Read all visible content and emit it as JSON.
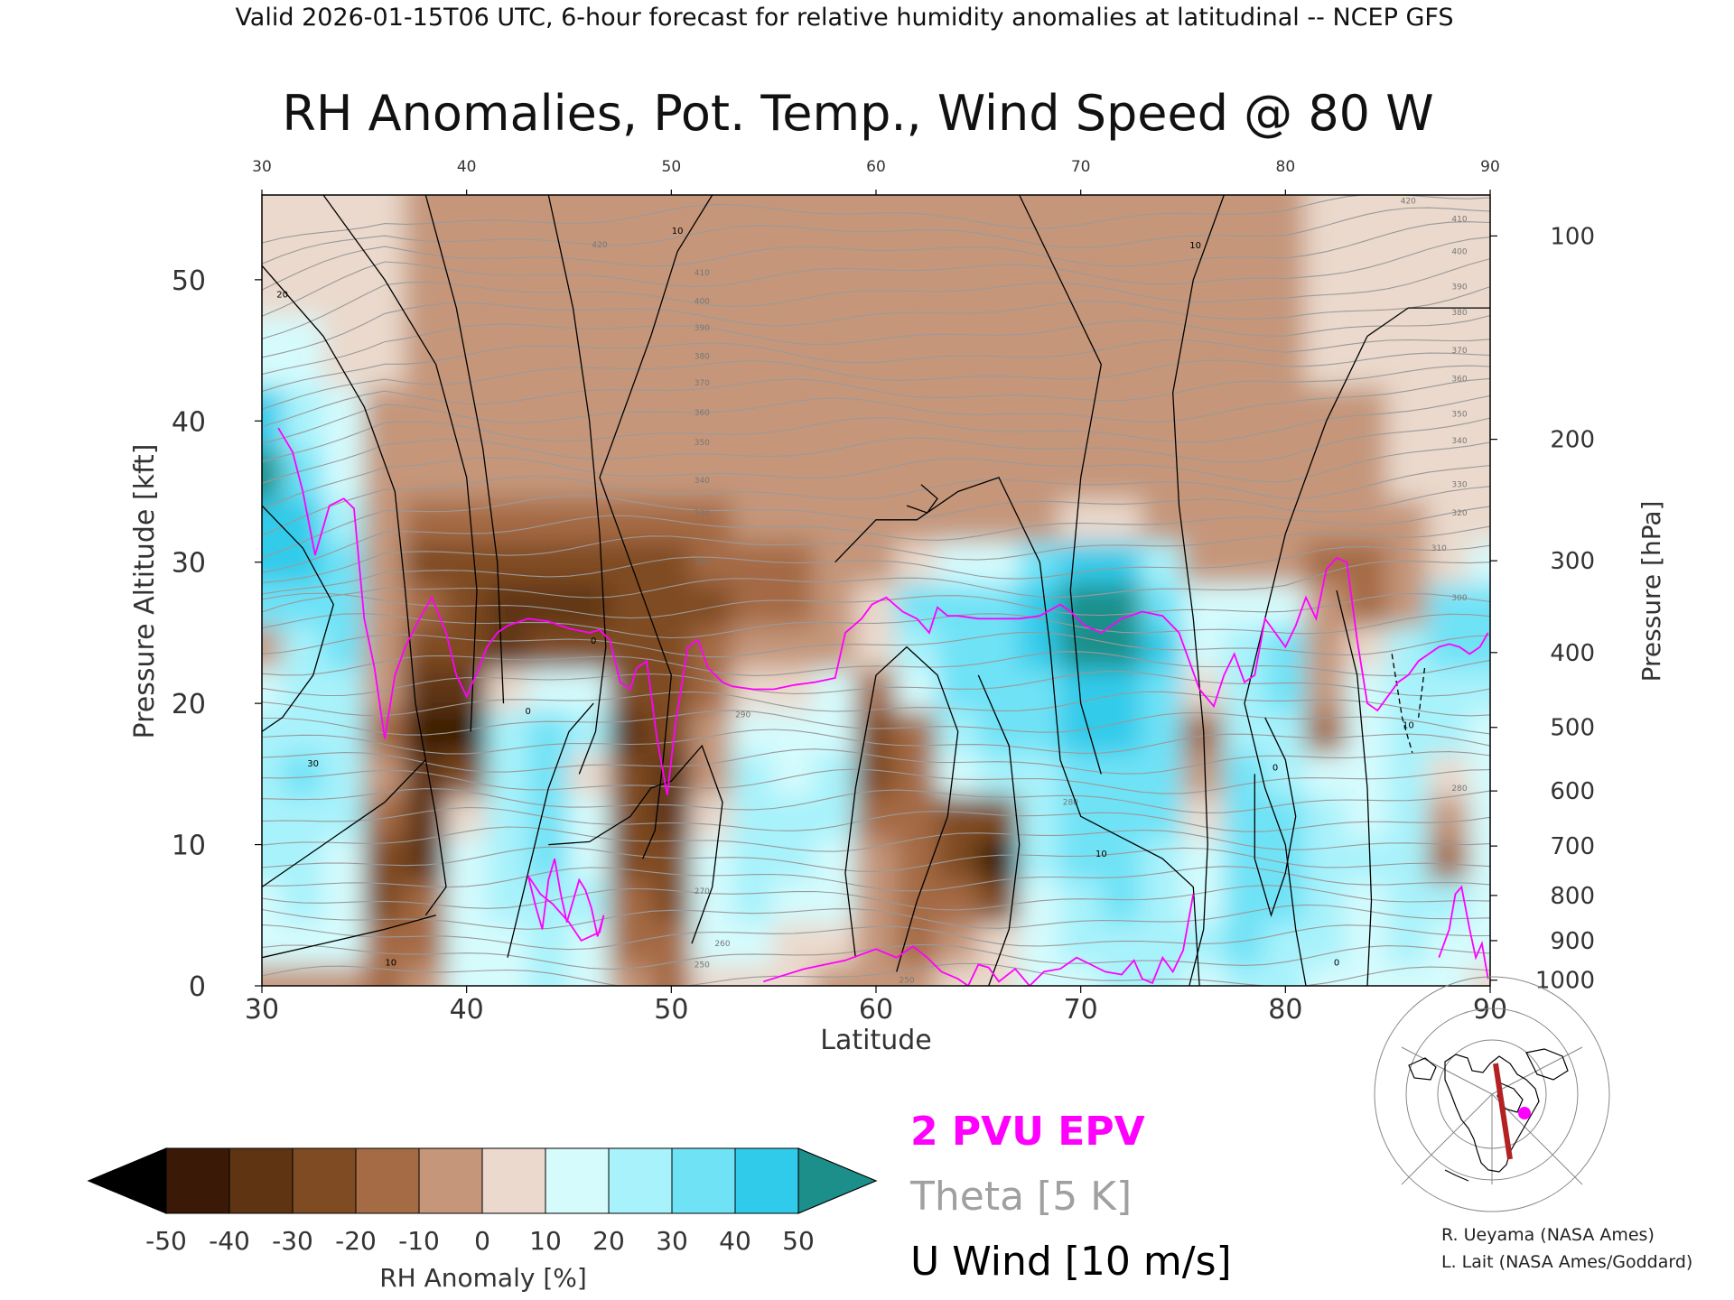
{
  "header": "Valid 2026-01-15T06 UTC, 6-hour forecast for relative humidity anomalies at latitudinal -- NCEP GFS",
  "chart_data": {
    "type": "heatmap",
    "title": "RH Anomalies, Pot. Temp., Wind Speed @ 80 W",
    "xlabel": "Latitude",
    "ylabel": "Pressure Altitude [kft]",
    "ylabel_right": "Pressure [hPa]",
    "xlim": [
      30,
      90
    ],
    "ylim": [
      0,
      56
    ],
    "x_ticks": [
      30,
      40,
      50,
      60,
      70,
      80,
      90
    ],
    "x_tick_labels": [
      "30",
      "40",
      "50",
      "60",
      "70",
      "80",
      "90"
    ],
    "y_ticks": [
      0,
      10,
      20,
      30,
      40,
      50
    ],
    "y_tick_labels": [
      "0",
      "10",
      "20",
      "30",
      "40",
      "50"
    ],
    "pressure_ticks": [
      {
        "label": "100",
        "kft": 53.1
      },
      {
        "label": "200",
        "kft": 38.7
      },
      {
        "label": "300",
        "kft": 30.1
      },
      {
        "label": "400",
        "kft": 23.6
      },
      {
        "label": "500",
        "kft": 18.3
      },
      {
        "label": "600",
        "kft": 13.8
      },
      {
        "label": "700",
        "kft": 9.9
      },
      {
        "label": "800",
        "kft": 6.4
      },
      {
        "label": "900",
        "kft": 3.2
      },
      {
        "label": "1000",
        "kft": 0.4
      }
    ],
    "rh_anomaly_field": {
      "x": [
        30,
        32,
        34,
        36,
        38,
        40,
        42,
        44,
        46,
        48,
        50,
        52,
        54,
        56,
        58,
        60,
        62,
        64,
        66,
        68,
        70,
        72,
        74,
        76,
        78,
        80,
        82,
        84,
        86,
        88,
        90
      ],
      "y": [
        0,
        3,
        6,
        9,
        12,
        15,
        18,
        21,
        24,
        27,
        30,
        33,
        36,
        40,
        45,
        50,
        56
      ],
      "values": [
        [
          -5,
          -5,
          -10,
          -20,
          -5,
          10,
          15,
          20,
          10,
          -10,
          -15,
          5,
          5,
          0,
          -5,
          -5,
          -10,
          0,
          5,
          10,
          15,
          20,
          20,
          15,
          25,
          20,
          15,
          10,
          15,
          10,
          5
        ],
        [
          10,
          15,
          10,
          -15,
          -15,
          15,
          15,
          20,
          15,
          -15,
          -20,
          10,
          10,
          5,
          0,
          -5,
          -15,
          -5,
          0,
          15,
          20,
          25,
          25,
          20,
          30,
          25,
          20,
          10,
          20,
          15,
          10
        ],
        [
          15,
          20,
          10,
          -25,
          -20,
          15,
          25,
          25,
          20,
          -20,
          -25,
          15,
          20,
          15,
          10,
          -10,
          -20,
          -15,
          -25,
          15,
          25,
          30,
          25,
          15,
          30,
          30,
          25,
          15,
          25,
          20,
          10
        ],
        [
          20,
          25,
          15,
          -25,
          -35,
          10,
          25,
          30,
          15,
          -25,
          -30,
          10,
          25,
          20,
          15,
          -10,
          -15,
          -30,
          -45,
          20,
          30,
          30,
          25,
          10,
          35,
          30,
          25,
          20,
          25,
          -15,
          15
        ],
        [
          20,
          25,
          20,
          -15,
          -40,
          5,
          25,
          30,
          10,
          -30,
          -35,
          0,
          20,
          20,
          20,
          -20,
          -15,
          -25,
          -30,
          20,
          30,
          35,
          30,
          5,
          35,
          30,
          20,
          15,
          25,
          -10,
          10
        ],
        [
          25,
          30,
          25,
          -10,
          -35,
          -25,
          25,
          35,
          5,
          -30,
          -35,
          -5,
          20,
          15,
          20,
          -25,
          -20,
          10,
          25,
          25,
          35,
          35,
          30,
          -10,
          30,
          25,
          15,
          10,
          20,
          5,
          10
        ],
        [
          20,
          25,
          20,
          -15,
          -45,
          -50,
          20,
          30,
          20,
          -35,
          -30,
          -10,
          10,
          10,
          15,
          -25,
          -15,
          20,
          35,
          30,
          40,
          40,
          35,
          -20,
          25,
          20,
          -15,
          10,
          25,
          20,
          10
        ],
        [
          15,
          25,
          25,
          -5,
          -40,
          -40,
          0,
          15,
          10,
          -30,
          -30,
          -15,
          0,
          0,
          10,
          -15,
          15,
          30,
          35,
          35,
          45,
          45,
          35,
          5,
          25,
          30,
          -10,
          15,
          25,
          25,
          20
        ],
        [
          -10,
          20,
          35,
          -5,
          -25,
          -30,
          -35,
          -30,
          -30,
          -25,
          -25,
          -15,
          -10,
          -10,
          -5,
          5,
          25,
          35,
          35,
          40,
          50,
          50,
          40,
          15,
          25,
          35,
          -10,
          5,
          25,
          30,
          30
        ],
        [
          30,
          35,
          30,
          -5,
          -20,
          -30,
          -35,
          -35,
          -35,
          -30,
          -30,
          -25,
          -20,
          -15,
          -10,
          5,
          30,
          30,
          30,
          45,
          55,
          50,
          35,
          15,
          15,
          15,
          -10,
          -15,
          -5,
          30,
          30
        ],
        [
          40,
          40,
          30,
          -10,
          -25,
          -30,
          -30,
          -30,
          -25,
          -25,
          -25,
          -20,
          -15,
          -15,
          -10,
          -5,
          5,
          15,
          10,
          30,
          40,
          40,
          20,
          -5,
          -10,
          -10,
          -15,
          -20,
          -10,
          5,
          10
        ],
        [
          45,
          40,
          20,
          -5,
          -15,
          -15,
          -15,
          -15,
          -15,
          -15,
          -15,
          -15,
          -10,
          -10,
          -10,
          -10,
          -5,
          -5,
          -5,
          -5,
          0,
          0,
          -5,
          -10,
          -10,
          -10,
          -10,
          -10,
          -5,
          0,
          5
        ],
        [
          50,
          35,
          15,
          -5,
          -10,
          -10,
          -10,
          -10,
          -10,
          -10,
          -10,
          -10,
          -10,
          -10,
          -10,
          -10,
          -10,
          -10,
          -10,
          -10,
          -10,
          -10,
          -10,
          -10,
          -10,
          -10,
          -10,
          -5,
          0,
          5,
          5
        ],
        [
          40,
          25,
          10,
          -5,
          -10,
          -10,
          -10,
          -10,
          -10,
          -10,
          -10,
          -10,
          -10,
          -10,
          -10,
          -10,
          -10,
          -10,
          -10,
          -10,
          -10,
          -10,
          -10,
          -10,
          -10,
          -10,
          -5,
          -5,
          0,
          5,
          5
        ],
        [
          15,
          10,
          5,
          0,
          -5,
          -5,
          -5,
          -5,
          -5,
          -5,
          -5,
          -5,
          -5,
          -5,
          -5,
          -5,
          -5,
          -5,
          -5,
          -5,
          -5,
          -5,
          -5,
          -5,
          -5,
          -5,
          0,
          0,
          5,
          5,
          5
        ],
        [
          5,
          5,
          5,
          0,
          -5,
          -5,
          -5,
          -5,
          -5,
          -5,
          -5,
          -5,
          -5,
          -5,
          -5,
          -5,
          -5,
          -5,
          -5,
          -5,
          -5,
          -5,
          -5,
          -5,
          -5,
          -5,
          0,
          0,
          5,
          5,
          5
        ],
        [
          5,
          5,
          0,
          0,
          -5,
          -5,
          -5,
          -5,
          -5,
          -5,
          -5,
          -5,
          -5,
          -5,
          -5,
          -5,
          -5,
          -5,
          -5,
          -5,
          -5,
          -5,
          -5,
          -5,
          -5,
          -5,
          0,
          0,
          5,
          5,
          5
        ]
      ]
    },
    "theta_contours": {
      "interval_K": 5,
      "labels": [
        {
          "value": "250",
          "lat": 51.5,
          "kft": 1.5
        },
        {
          "value": "250",
          "lat": 61.5,
          "kft": 0.4
        },
        {
          "value": "260",
          "lat": 52.5,
          "kft": 3.0
        },
        {
          "value": "270",
          "lat": 51.5,
          "kft": 6.7
        },
        {
          "value": "280",
          "lat": 69.5,
          "kft": 13.0
        },
        {
          "value": "280",
          "lat": 88.5,
          "kft": 14.0
        },
        {
          "value": "290",
          "lat": 53.5,
          "kft": 19.2
        },
        {
          "value": "300",
          "lat": 88.5,
          "kft": 27.5
        },
        {
          "value": "310",
          "lat": 87.5,
          "kft": 31.0
        },
        {
          "value": "320",
          "lat": 51.5,
          "kft": 30.0
        },
        {
          "value": "320",
          "lat": 88.5,
          "kft": 33.5
        },
        {
          "value": "330",
          "lat": 51.5,
          "kft": 33.5
        },
        {
          "value": "330",
          "lat": 88.5,
          "kft": 35.5
        },
        {
          "value": "340",
          "lat": 51.5,
          "kft": 35.8
        },
        {
          "value": "340",
          "lat": 88.5,
          "kft": 38.6
        },
        {
          "value": "350",
          "lat": 51.5,
          "kft": 38.5
        },
        {
          "value": "350",
          "lat": 88.5,
          "kft": 40.5
        },
        {
          "value": "360",
          "lat": 51.5,
          "kft": 40.6
        },
        {
          "value": "360",
          "lat": 88.5,
          "kft": 43.0
        },
        {
          "value": "370",
          "lat": 51.5,
          "kft": 42.7
        },
        {
          "value": "370",
          "lat": 88.5,
          "kft": 45.0
        },
        {
          "value": "380",
          "lat": 51.5,
          "kft": 44.6
        },
        {
          "value": "380",
          "lat": 88.5,
          "kft": 47.7
        },
        {
          "value": "390",
          "lat": 51.5,
          "kft": 46.6
        },
        {
          "value": "390",
          "lat": 88.5,
          "kft": 49.5
        },
        {
          "value": "400",
          "lat": 51.5,
          "kft": 48.5
        },
        {
          "value": "400",
          "lat": 88.5,
          "kft": 52.0
        },
        {
          "value": "410",
          "lat": 51.5,
          "kft": 50.5
        },
        {
          "value": "410",
          "lat": 88.5,
          "kft": 54.3
        },
        {
          "value": "420",
          "lat": 46.5,
          "kft": 52.5
        },
        {
          "value": "420",
          "lat": 86.0,
          "kft": 55.6
        }
      ]
    },
    "epv_2pvu": {
      "main": {
        "lat": [
          30.8,
          31.5,
          32.0,
          32.6,
          33.3,
          34.0,
          34.5,
          35.0,
          35.5,
          36.0,
          36.5,
          37.0,
          37.7,
          38.3,
          39.0,
          39.5,
          40.0,
          40.6,
          41.0,
          41.5,
          42.0,
          43.0,
          44.0,
          45.0,
          46.0,
          46.5,
          47.0,
          47.5,
          48.0,
          48.3,
          48.8,
          49.3,
          49.8,
          50.2,
          50.8,
          51.3,
          51.8,
          52.5,
          53.0,
          54.0,
          55.0,
          56.0,
          57.0,
          58.0,
          58.5,
          59.3,
          59.8,
          60.5,
          61.3,
          62.0,
          62.6,
          63.0,
          63.5,
          64.0,
          65.0,
          66.0,
          67.0,
          68.0,
          69.0,
          69.5,
          70.2,
          71.0,
          72.0,
          73.0,
          74.0,
          74.8,
          75.3,
          75.8,
          76.5,
          77.0,
          77.5,
          78.0,
          78.5,
          79.0,
          79.5,
          80.0,
          80.5,
          81.0,
          81.5,
          82.0,
          82.5,
          83.0,
          83.5,
          84.0,
          84.5,
          85.0,
          85.5,
          86.0,
          86.5,
          87.0,
          87.5,
          88.0,
          88.5,
          89.0,
          89.5,
          89.9
        ],
        "kft": [
          39.5,
          37.8,
          35.0,
          30.5,
          34.0,
          34.5,
          33.8,
          26.0,
          22.5,
          17.5,
          22.0,
          24.0,
          26.0,
          27.5,
          25.0,
          22.0,
          20.5,
          22.5,
          24.0,
          25.0,
          25.5,
          26.0,
          25.8,
          25.3,
          25.0,
          25.2,
          24.5,
          21.5,
          21.0,
          22.5,
          23.0,
          17.5,
          13.5,
          18.5,
          24.0,
          24.5,
          22.5,
          21.5,
          21.2,
          21.0,
          21.0,
          21.3,
          21.5,
          21.8,
          25.0,
          26.0,
          27.0,
          27.5,
          26.5,
          26.0,
          25.0,
          26.8,
          26.2,
          26.2,
          26.0,
          26.0,
          26.0,
          26.2,
          27.0,
          26.5,
          25.5,
          25.0,
          26.0,
          26.5,
          26.2,
          25.0,
          23.0,
          21.0,
          19.8,
          22.0,
          23.5,
          21.5,
          22.0,
          26.0,
          25.0,
          24.0,
          25.5,
          27.5,
          26.0,
          29.5,
          30.3,
          30.0,
          24.5,
          20.0,
          19.5,
          20.5,
          21.5,
          22.0,
          23.0,
          23.5,
          24.0,
          24.2,
          24.0,
          23.5,
          24.0,
          25.0
        ]
      },
      "low_left": {
        "lat": [
          43.0,
          43.4,
          43.7,
          44.0,
          44.3,
          44.6,
          44.9,
          45.2,
          45.5,
          45.8,
          46.1,
          46.4,
          46.7,
          46.5,
          45.6,
          45.0,
          44.2,
          43.6,
          43.0
        ],
        "kft": [
          7.8,
          5.5,
          4.0,
          7.5,
          9.0,
          6.5,
          4.5,
          6.0,
          7.5,
          6.8,
          5.5,
          3.5,
          5.0,
          3.8,
          3.2,
          4.5,
          5.8,
          6.5,
          7.8
        ]
      },
      "surface": {
        "lat": [
          54.5,
          56.5,
          58.5,
          60.0,
          61.0,
          61.8,
          62.5,
          63.2,
          64.0,
          64.5,
          65.0,
          65.5,
          66.0,
          66.8,
          67.5,
          68.2,
          69.0,
          69.8,
          70.5,
          71.2,
          72.0,
          72.6,
          73.0,
          73.5,
          74.0,
          74.5,
          75.0,
          75.5
        ],
        "kft": [
          0.3,
          1.2,
          1.8,
          2.6,
          2.0,
          2.8,
          2.0,
          1.0,
          0.5,
          0.0,
          1.5,
          1.3,
          0.3,
          1.2,
          0.0,
          1.0,
          1.2,
          2.0,
          1.5,
          1.0,
          0.8,
          1.8,
          0.5,
          0.2,
          2.0,
          1.0,
          2.5,
          6.5
        ]
      },
      "right_surface": {
        "lat": [
          87.5,
          88.0,
          88.3,
          88.6,
          89.0,
          89.3,
          89.6,
          89.9
        ],
        "kft": [
          2.0,
          4.0,
          6.5,
          7.0,
          4.0,
          2.0,
          3.0,
          0.5
        ]
      }
    },
    "u_wind_contours": {
      "interval": "10 m/s",
      "labels": [
        {
          "value": "10",
          "lat": 50.3,
          "kft": 53.5
        },
        {
          "value": "10",
          "lat": 75.6,
          "kft": 52.5
        },
        {
          "value": "10",
          "lat": 71.0,
          "kft": 9.4
        },
        {
          "value": "10",
          "lat": 36.3,
          "kft": 1.7
        },
        {
          "value": "20",
          "lat": 31.0,
          "kft": 49.0
        },
        {
          "value": "30",
          "lat": 32.5,
          "kft": 15.8
        },
        {
          "value": "0",
          "lat": 43.0,
          "kft": 19.5
        },
        {
          "value": "0",
          "lat": 46.2,
          "kft": 24.5
        },
        {
          "value": "0",
          "lat": 82.5,
          "kft": 1.7
        },
        {
          "value": "0",
          "lat": 79.5,
          "kft": 15.5
        },
        {
          "value": "10",
          "lat": 86.0,
          "kft": 18.5
        }
      ]
    },
    "rh_colorbar": {
      "ticks": [
        "-50",
        "-40",
        "-30",
        "-20",
        "-10",
        "0",
        "10",
        "20",
        "30",
        "40",
        "50"
      ],
      "colors": [
        "#000000",
        "#3a1a06",
        "#5e3412",
        "#7f4b22",
        "#a56b45",
        "#c5967a",
        "#ead9cc",
        "#d6fbfd",
        "#a8f2fb",
        "#6fe2f6",
        "#30cbea",
        "#0c9dc7",
        "#1d8f8a"
      ],
      "label": "RH Anomaly [%]"
    },
    "legend": [
      {
        "text": "2 PVU EPV",
        "color": "#ff00ff"
      },
      {
        "text": "Theta [5 K]",
        "color": "#a0a0a0"
      },
      {
        "text": "U Wind [10 m/s]",
        "color": "#000000"
      }
    ]
  },
  "inset_map": {
    "section_color": "#b22222",
    "marker_color": "#ff00ff"
  },
  "credits": [
    "R. Ueyama (NASA Ames)",
    "L. Lait (NASA Ames/Goddard)"
  ]
}
